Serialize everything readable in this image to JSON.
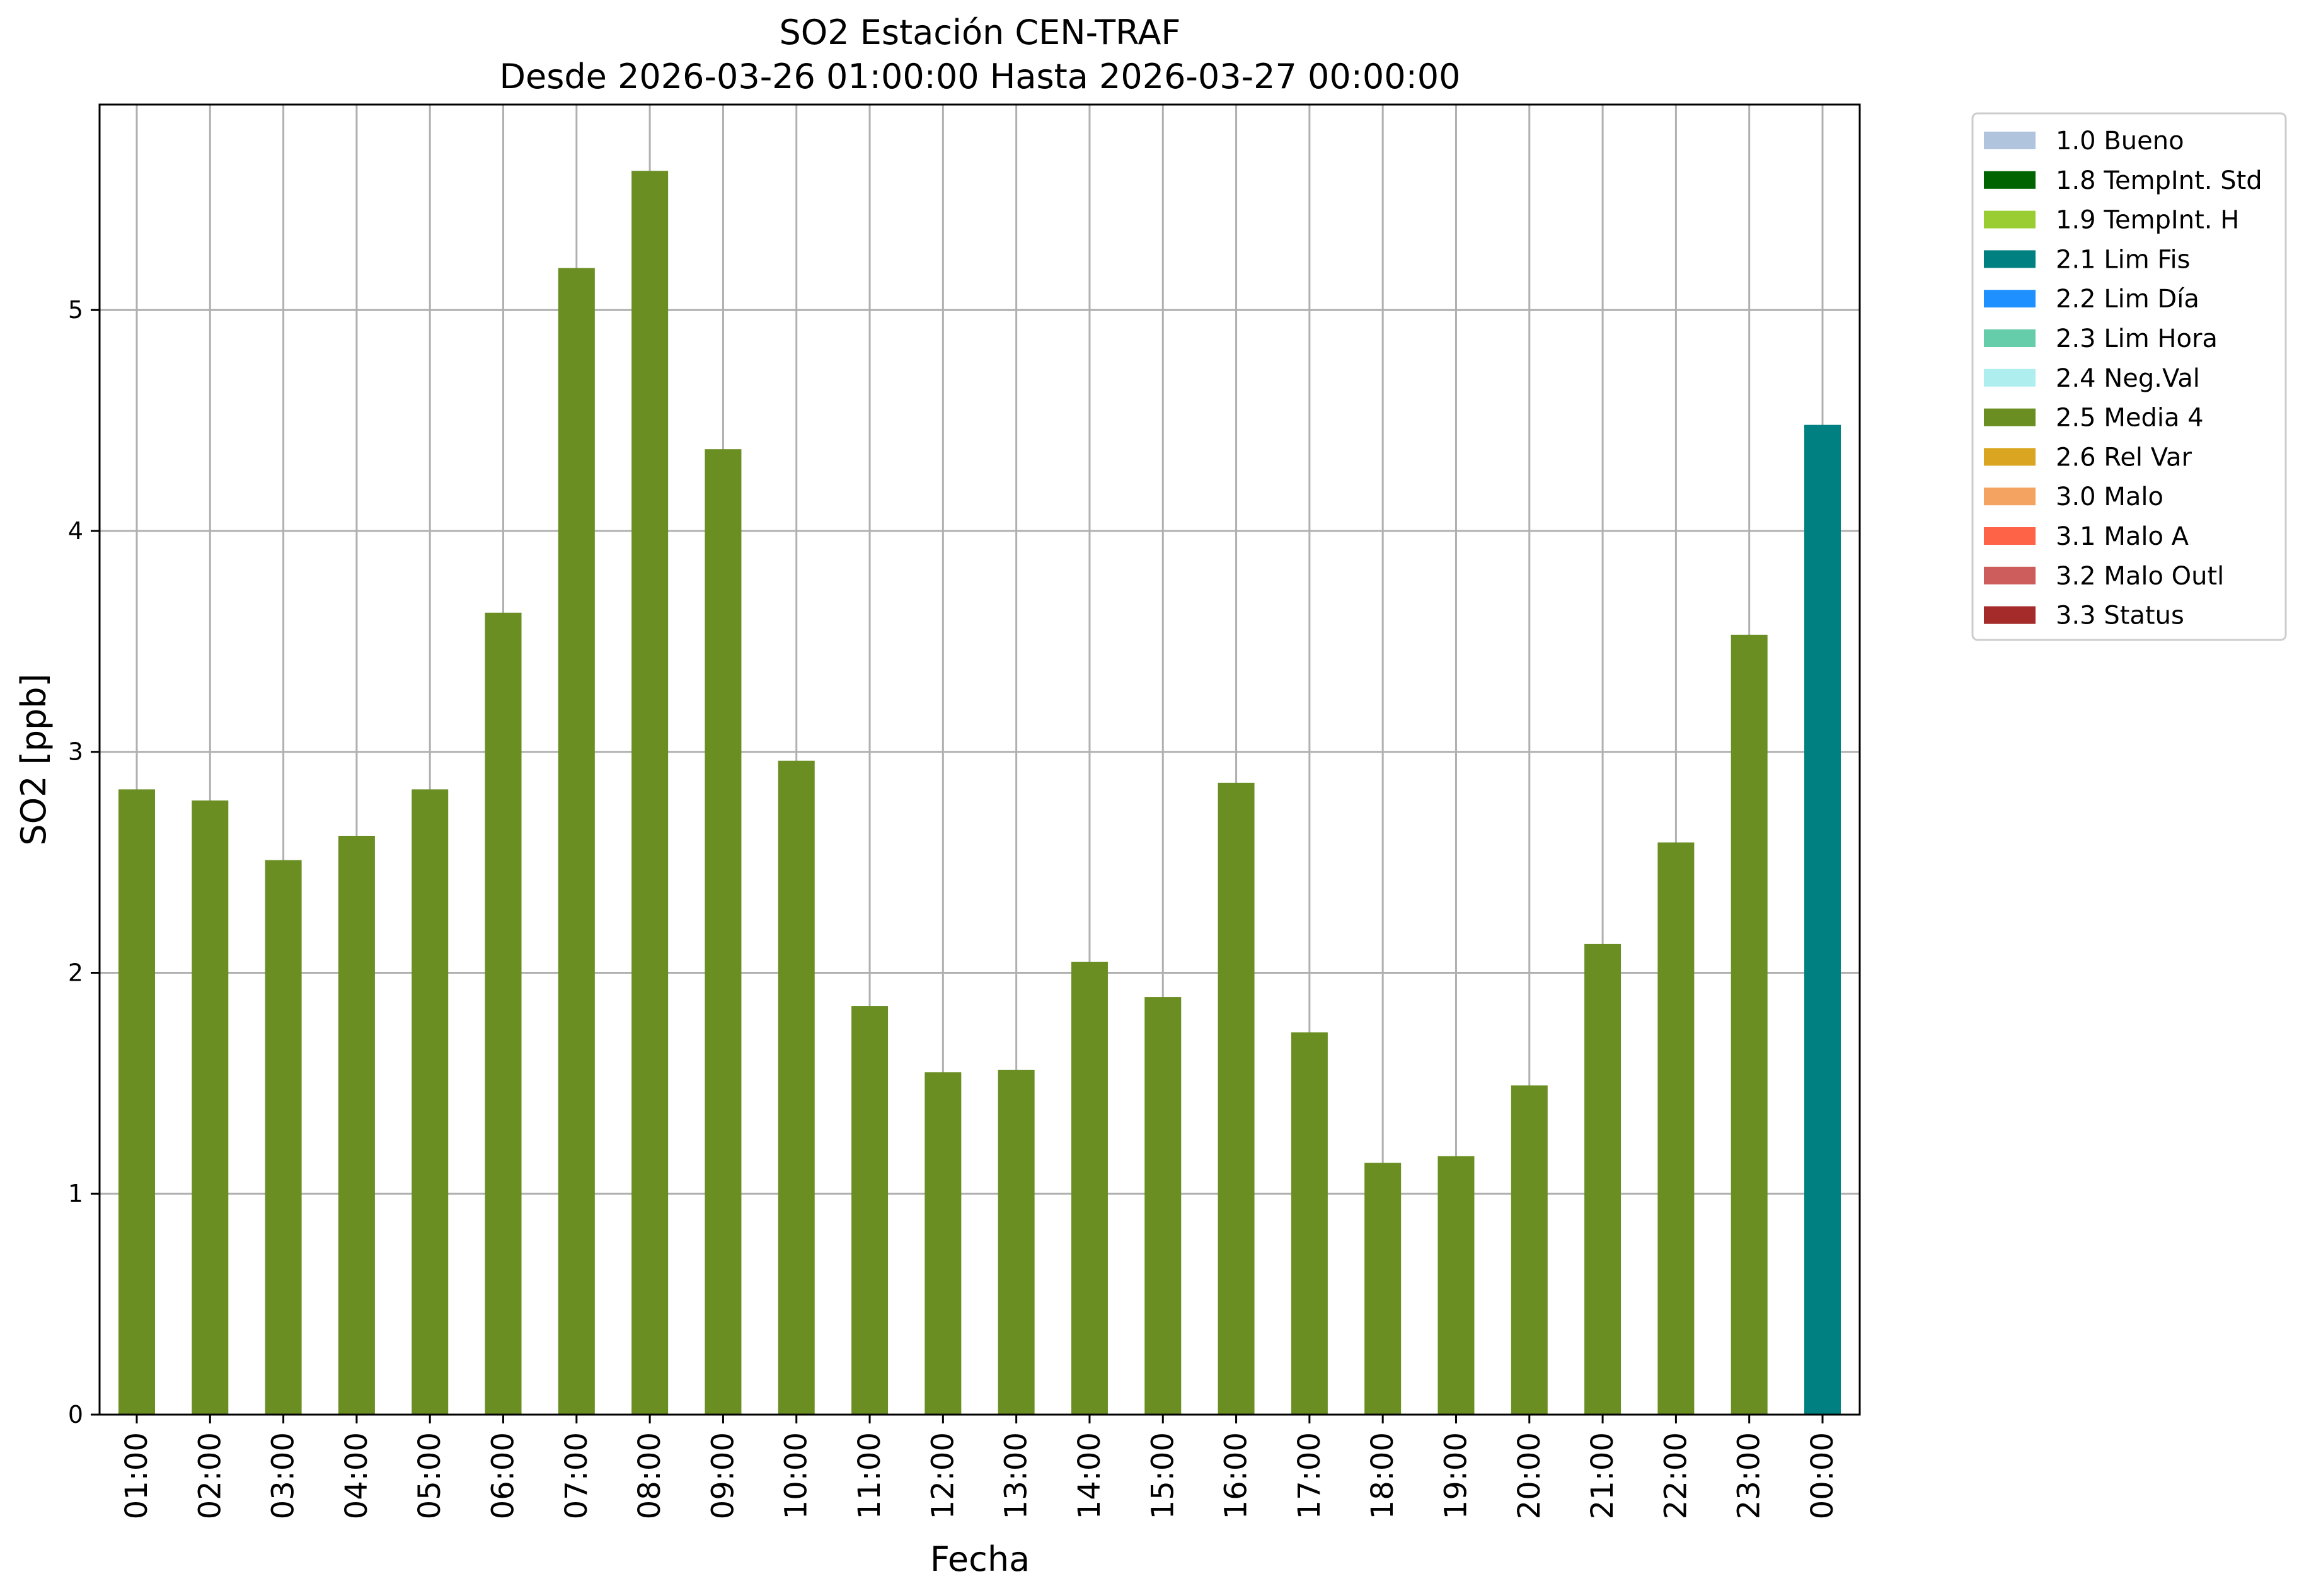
{
  "chart_data": {
    "type": "bar",
    "title": "SO2 Estación CEN-TRAF",
    "subtitle": "Desde 2026-03-26 01:00:00 Hasta 2026-03-27 00:00:00",
    "xlabel": "Fecha",
    "ylabel": "SO2 [ppb]",
    "ylim": [
      0,
      5.93
    ],
    "yticks": [
      0,
      1,
      2,
      3,
      4,
      5
    ],
    "grid": true,
    "legend_position": "outside-right",
    "categories": [
      "01:00",
      "02:00",
      "03:00",
      "04:00",
      "05:00",
      "06:00",
      "07:00",
      "08:00",
      "09:00",
      "10:00",
      "11:00",
      "12:00",
      "13:00",
      "14:00",
      "15:00",
      "16:00",
      "17:00",
      "18:00",
      "19:00",
      "20:00",
      "21:00",
      "22:00",
      "23:00",
      "00:00"
    ],
    "values": [
      2.83,
      2.78,
      2.51,
      2.62,
      2.83,
      3.63,
      5.19,
      5.63,
      4.37,
      2.96,
      1.85,
      1.55,
      1.56,
      2.05,
      1.89,
      2.86,
      1.73,
      1.14,
      1.17,
      1.49,
      2.13,
      2.59,
      3.53,
      4.48
    ],
    "flags": [
      "2.5 Media 4",
      "2.5 Media 4",
      "2.5 Media 4",
      "2.5 Media 4",
      "2.5 Media 4",
      "2.5 Media 4",
      "2.5 Media 4",
      "2.5 Media 4",
      "2.5 Media 4",
      "2.5 Media 4",
      "2.5 Media 4",
      "2.5 Media 4",
      "2.5 Media 4",
      "2.5 Media 4",
      "2.5 Media 4",
      "2.5 Media 4",
      "2.5 Media 4",
      "2.5 Media 4",
      "2.5 Media 4",
      "2.5 Media 4",
      "2.5 Media 4",
      "2.5 Media 4",
      "2.5 Media 4",
      "2.1 Lim Fis"
    ],
    "legend": [
      {
        "label": "1.0 Bueno",
        "color": "#b0c4de"
      },
      {
        "label": "1.8 TempInt. Std",
        "color": "#006400"
      },
      {
        "label": "1.9 TempInt. H",
        "color": "#9acd32"
      },
      {
        "label": "2.1 Lim Fis",
        "color": "#008080"
      },
      {
        "label": "2.2 Lim Día",
        "color": "#1e90ff"
      },
      {
        "label": "2.3 Lim Hora",
        "color": "#66cdaa"
      },
      {
        "label": "2.4 Neg.Val",
        "color": "#afeeee"
      },
      {
        "label": "2.5 Media 4",
        "color": "#6b8e23"
      },
      {
        "label": "2.6 Rel Var",
        "color": "#daa520"
      },
      {
        "label": "3.0 Malo",
        "color": "#f4a460"
      },
      {
        "label": "3.1 Malo A",
        "color": "#ff6347"
      },
      {
        "label": "3.2 Malo Outl",
        "color": "#cd5c5c"
      },
      {
        "label": "3.3 Status",
        "color": "#a52a2a"
      }
    ]
  }
}
